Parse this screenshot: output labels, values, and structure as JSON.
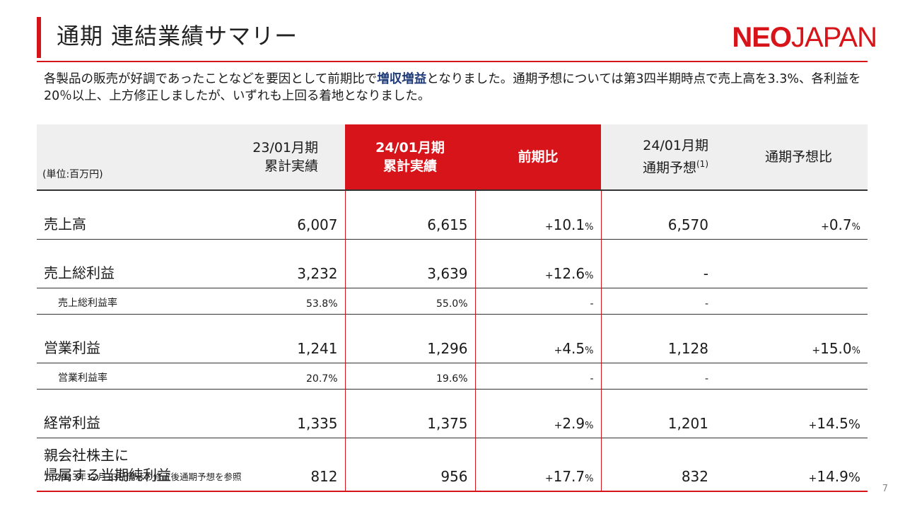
{
  "header": {
    "title": "通期 連結業績サマリー",
    "logo_part1": "NEO",
    "logo_part2": "JAPAN"
  },
  "summary": {
    "text_before": "各製品の販売が好調であったことなどを要因として前期比で",
    "highlight": "増収増益",
    "text_after": "となりました。通期予想については第3四半期時点で売上高を3.3%、各利益を20％以上、上方修正しましたが、いずれも上回る着地となりました。"
  },
  "table": {
    "unit": "(単位:百万円)",
    "col1": [
      "23/01月期",
      "累計実績"
    ],
    "col2": [
      "24/01月期",
      "累計実績"
    ],
    "col3": "前期比",
    "col4": [
      "24/01月期",
      "通期予想"
    ],
    "col4_sup": "(1)",
    "col5": "通期予想比",
    "rows": [
      {
        "label": "売上高",
        "prev": "6,007",
        "curr": "6,615",
        "yoy": "10.1",
        "forecast": "6,570",
        "vs": "0.7"
      },
      {
        "label": "売上総利益",
        "prev": "3,232",
        "curr": "3,639",
        "yoy": "12.6",
        "forecast": "-",
        "vs": ""
      },
      {
        "label": "売上総利益率",
        "prev": "53.8%",
        "curr": "55.0%",
        "yoy": "-",
        "forecast": "-",
        "vs": ""
      },
      {
        "label": "営業利益",
        "prev": "1,241",
        "curr": "1,296",
        "yoy": "4.5",
        "forecast": "1,128",
        "vs": "15.0"
      },
      {
        "label": "営業利益率",
        "prev": "20.7%",
        "curr": "19.6%",
        "yoy": "-",
        "forecast": "-",
        "vs": ""
      },
      {
        "label": "経常利益",
        "prev": "1,335",
        "curr": "1,375",
        "yoy": "2.9",
        "forecast": "1,201",
        "vs": "14.5"
      },
      {
        "label1": "親会社株主に",
        "label2": "帰属する当期純利益",
        "prev": "812",
        "curr": "956",
        "yoy": "17.7",
        "forecast": "832",
        "vs": "14.9"
      }
    ],
    "plus": "+",
    "pct": "%"
  },
  "footnote": "1.  2023年12月13日開示の修正後通期予想を参照",
  "page_number": "7",
  "colors": {
    "accent": "#d7141a",
    "highlight": "#1e3a78",
    "header_bg": "#efefef"
  }
}
